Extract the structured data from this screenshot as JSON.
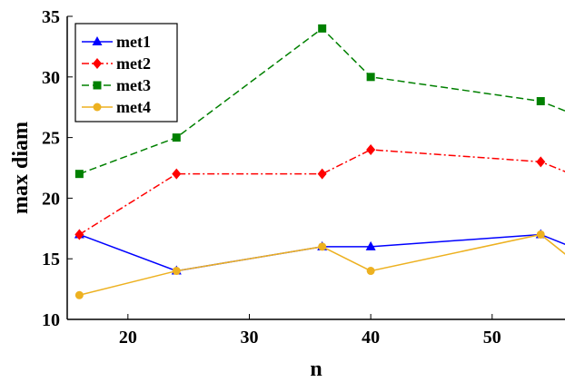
{
  "chart_data": {
    "type": "line",
    "xlabel": "n",
    "ylabel": "max diam",
    "xlim": [
      15,
      56
    ],
    "ylim": [
      10,
      35
    ],
    "xticks": [
      20,
      30,
      40,
      50
    ],
    "yticks": [
      10,
      15,
      20,
      25,
      30,
      35
    ],
    "grid": false,
    "legend_position": "top-left",
    "series": [
      {
        "name": "met1",
        "color": "#0000ff",
        "line_style": "solid",
        "marker": "triangle",
        "points": [
          [
            16,
            17
          ],
          [
            24,
            14
          ],
          [
            36,
            16
          ],
          [
            40,
            16
          ],
          [
            54,
            17
          ],
          [
            56.5,
            16
          ]
        ]
      },
      {
        "name": "met2",
        "color": "#ff0000",
        "line_style": "dash-dot",
        "marker": "diamond",
        "points": [
          [
            16,
            17
          ],
          [
            24,
            22
          ],
          [
            36,
            22
          ],
          [
            40,
            24
          ],
          [
            54,
            23
          ],
          [
            56.5,
            22
          ]
        ]
      },
      {
        "name": "met3",
        "color": "#008000",
        "line_style": "dashed",
        "marker": "square",
        "points": [
          [
            16,
            22
          ],
          [
            24,
            25
          ],
          [
            36,
            34
          ],
          [
            40,
            30
          ],
          [
            54,
            28
          ],
          [
            56.5,
            27
          ]
        ]
      },
      {
        "name": "met4",
        "color": "#edb120",
        "line_style": "solid",
        "marker": "circle",
        "points": [
          [
            16,
            12
          ],
          [
            24,
            14
          ],
          [
            36,
            16
          ],
          [
            40,
            14
          ],
          [
            54,
            17
          ],
          [
            56.5,
            15
          ]
        ]
      }
    ]
  }
}
